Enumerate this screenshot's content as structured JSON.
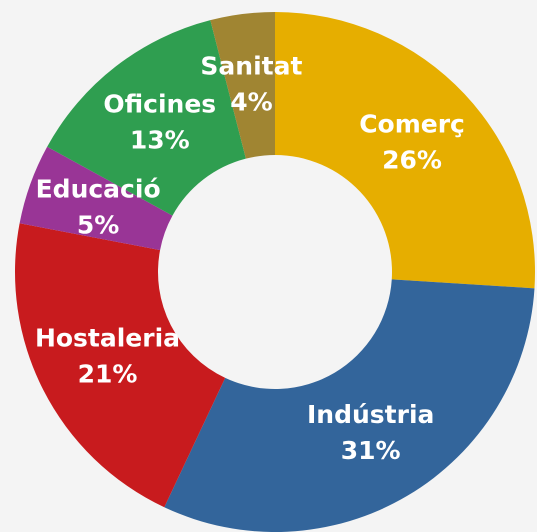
{
  "chart_data": {
    "type": "donut",
    "categories": [
      "Comerç",
      "Indústria",
      "Hostaleria",
      "Educació",
      "Oficines",
      "Sanitat"
    ],
    "values": [
      26,
      31,
      21,
      5,
      13,
      4
    ],
    "value_labels": [
      "26%",
      "31%",
      "21%",
      "5%",
      "13%",
      "4%"
    ],
    "colors": [
      "#e6ae00",
      "#33659b",
      "#c81b1e",
      "#993596",
      "#2f9e50",
      "#a08532"
    ]
  }
}
